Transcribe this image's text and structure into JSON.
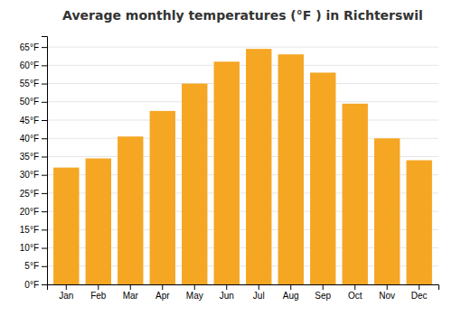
{
  "chart_data": {
    "type": "bar",
    "title": "Average monthly temperatures (°F ) in Richterswil",
    "categories": [
      "Jan",
      "Feb",
      "Mar",
      "Apr",
      "May",
      "Jun",
      "Jul",
      "Aug",
      "Sep",
      "Oct",
      "Nov",
      "Dec"
    ],
    "values": [
      32,
      34.5,
      40.5,
      47.5,
      55,
      61,
      64.5,
      63,
      58,
      49.5,
      40,
      34
    ],
    "color": "#F5A623",
    "ylim": [
      0,
      68
    ],
    "yticks": [
      {
        "value": 0,
        "label": "0°F"
      },
      {
        "value": 5,
        "label": "5°F"
      },
      {
        "value": 10,
        "label": "10°F"
      },
      {
        "value": 15,
        "label": "15°F"
      },
      {
        "value": 20,
        "label": "20°F"
      },
      {
        "value": 25,
        "label": "25°F"
      },
      {
        "value": 30,
        "label": "30°F"
      },
      {
        "value": 35,
        "label": "35°F"
      },
      {
        "value": 40,
        "label": "40°F"
      },
      {
        "value": 45,
        "label": "45°F"
      },
      {
        "value": 50,
        "label": "50°F"
      },
      {
        "value": 55,
        "label": "55°F"
      },
      {
        "value": 60,
        "label": "60°F"
      },
      {
        "value": 65,
        "label": "65°F"
      }
    ],
    "grid": true
  }
}
